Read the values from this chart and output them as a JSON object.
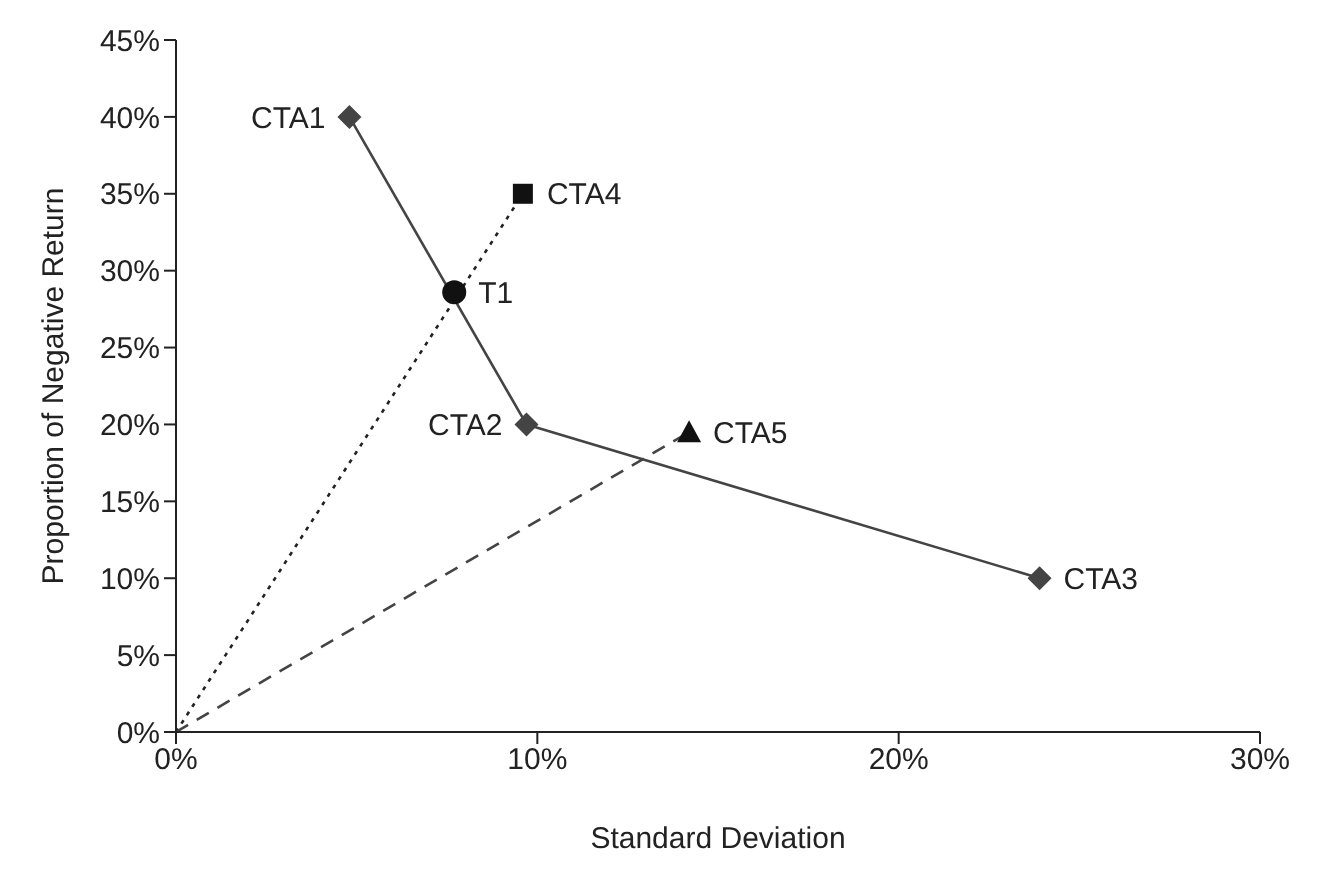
{
  "chart_data": {
    "type": "scatter",
    "xlabel": "Standard Deviation",
    "ylabel": "Proportion of Negative Return",
    "xlim": [
      0,
      30
    ],
    "xticks": [
      {
        "value": 0,
        "label": "0%"
      },
      {
        "value": 10,
        "label": "10%"
      },
      {
        "value": 20,
        "label": "20%"
      },
      {
        "value": 30,
        "label": "30%"
      }
    ],
    "ylim": [
      0,
      45
    ],
    "yticks": [
      {
        "value": 0,
        "label": "0%"
      },
      {
        "value": 5,
        "label": "5%"
      },
      {
        "value": 10,
        "label": "10%"
      },
      {
        "value": 15,
        "label": "15%"
      },
      {
        "value": 20,
        "label": "20%"
      },
      {
        "value": 25,
        "label": "25%"
      },
      {
        "value": 30,
        "label": "30%"
      },
      {
        "value": 35,
        "label": "35%"
      },
      {
        "value": 40,
        "label": "40%"
      },
      {
        "value": 45,
        "label": "45%"
      }
    ],
    "grid": false,
    "series": [
      {
        "type": "line",
        "color": "#444444",
        "marker": "diamond",
        "line_style": "solid",
        "x": [
          4.8,
          9.7,
          23.9
        ],
        "values": [
          40,
          20,
          10
        ]
      },
      {
        "type": "line",
        "color": "#222222",
        "marker": "none",
        "line_style": "dotted",
        "x": [
          0,
          9.6
        ],
        "values": [
          0,
          35
        ]
      },
      {
        "type": "line",
        "color": "#444444",
        "marker": "none",
        "line_style": "dashed",
        "x": [
          0,
          14.2
        ],
        "values": [
          0,
          19.5
        ]
      },
      {
        "color": "#111111",
        "marker": "square",
        "x": [
          9.6
        ],
        "values": [
          35
        ]
      },
      {
        "color": "#111111",
        "marker": "triangle",
        "x": [
          14.2
        ],
        "values": [
          19.5
        ]
      },
      {
        "color": "#111111",
        "marker": "circle",
        "x": [
          7.7
        ],
        "values": [
          28.6
        ]
      }
    ],
    "annotations": [
      {
        "text": "CTA1",
        "x": 4.8,
        "y": 40
      },
      {
        "text": "CTA2",
        "x": 9.7,
        "y": 20
      },
      {
        "text": "CTA3",
        "x": 23.9,
        "y": 10
      },
      {
        "text": "CTA4",
        "x": 9.6,
        "y": 35
      },
      {
        "text": "CTA5",
        "x": 14.2,
        "y": 19.5
      },
      {
        "text": "T1",
        "x": 7.7,
        "y": 28.6
      }
    ]
  }
}
